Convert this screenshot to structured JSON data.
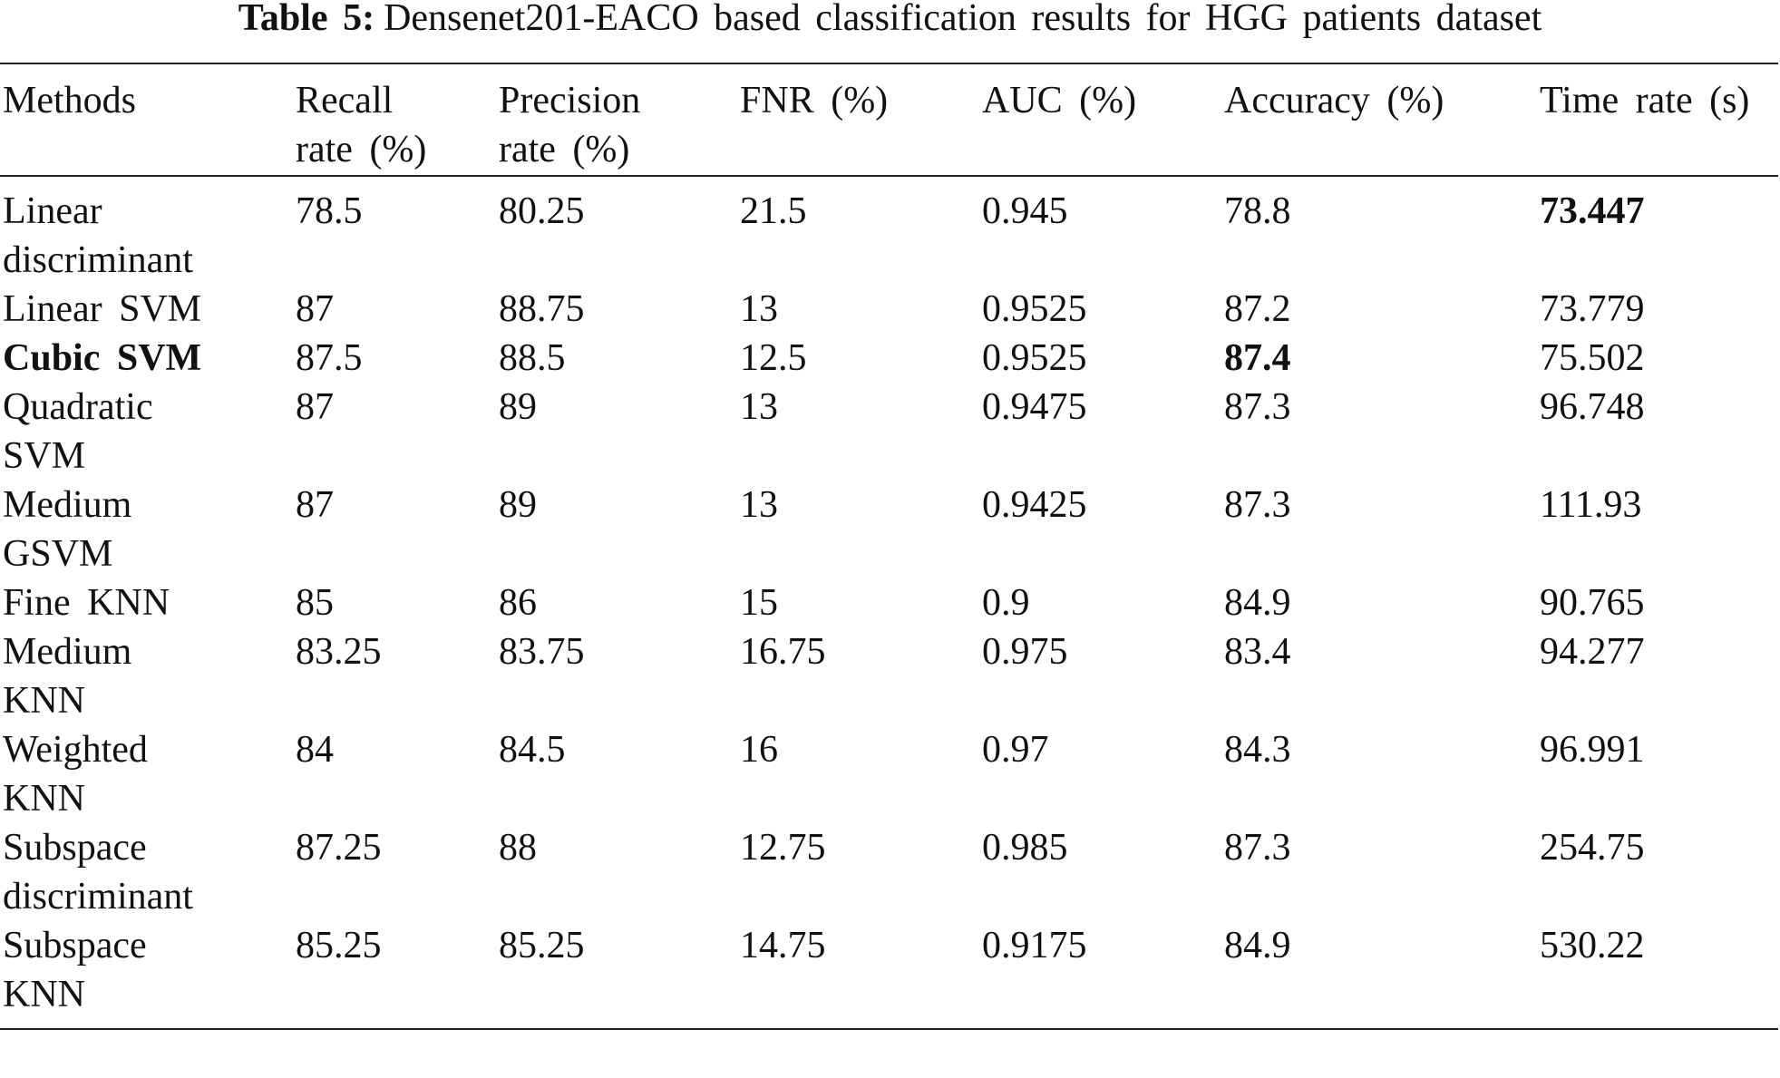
{
  "caption": {
    "label": "Table 5:",
    "text": "Densenet201-EACO based classification results for HGG patients dataset"
  },
  "table": {
    "header": [
      "Methods",
      "Recall rate (%)",
      "Precision rate (%)",
      "FNR (%)",
      "AUC (%)",
      "Accuracy (%)",
      "Time rate (s)"
    ],
    "rows": [
      [
        "Linear discriminant",
        "78.5",
        "80.25",
        "21.5",
        "0.945",
        "78.8",
        "73.447"
      ],
      [
        "Linear SVM",
        "87",
        "88.75",
        "13",
        "0.9525",
        "87.2",
        "73.779"
      ],
      [
        "Cubic SVM",
        "87.5",
        "88.5",
        "12.5",
        "0.9525",
        "87.4",
        "75.502"
      ],
      [
        "Quadratic SVM",
        "87",
        "89",
        "13",
        "0.9475",
        "87.3",
        "96.748"
      ],
      [
        "Medium GSVM",
        "87",
        "89",
        "13",
        "0.9425",
        "87.3",
        "111.93"
      ],
      [
        "Fine KNN",
        "85",
        "86",
        "15",
        "0.9",
        "84.9",
        "90.765"
      ],
      [
        "Medium KNN",
        "83.25",
        "83.75",
        "16.75",
        "0.975",
        "83.4",
        "94.277"
      ],
      [
        "Weighted KNN",
        "84",
        "84.5",
        "16",
        "0.97",
        "84.3",
        "96.991"
      ],
      [
        "Subspace discriminant",
        "87.25",
        "88",
        "12.75",
        "0.985",
        "87.3",
        "254.75"
      ],
      [
        "Subspace KNN",
        "85.25",
        "85.25",
        "14.75",
        "0.9175",
        "84.9",
        "530.22"
      ]
    ],
    "bold_cells": [
      [
        0,
        6
      ],
      [
        2,
        0
      ],
      [
        2,
        5
      ]
    ]
  }
}
